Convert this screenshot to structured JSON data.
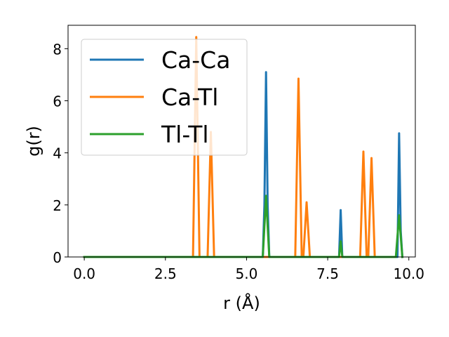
{
  "chart_data": {
    "type": "line",
    "title": "",
    "xlabel": "r (Å)",
    "ylabel": "g(r)",
    "xlim": [
      -0.5,
      10.2
    ],
    "ylim": [
      0,
      8.9
    ],
    "xticks": [
      0.0,
      2.5,
      5.0,
      7.5,
      10.0
    ],
    "xtick_labels": [
      "0.0",
      "2.5",
      "5.0",
      "7.5",
      "10.0"
    ],
    "yticks": [
      0,
      2,
      4,
      6,
      8
    ],
    "ytick_labels": [
      "0",
      "2",
      "4",
      "6",
      "8"
    ],
    "grid": false,
    "legend_position": "top-left",
    "series": [
      {
        "name": "Ca-Ca",
        "color": "#1f77b4",
        "x": [
          0.0,
          5.5,
          5.55,
          5.6,
          5.65,
          5.7,
          7.85,
          7.9,
          7.95,
          9.65,
          9.7,
          9.75,
          9.8
        ],
        "y": [
          0,
          0,
          2.0,
          7.1,
          2.0,
          0,
          0,
          1.8,
          0,
          0,
          4.75,
          1.0,
          0
        ]
      },
      {
        "name": "Ca-Tl",
        "color": "#ff7f0e",
        "x": [
          0.0,
          3.35,
          3.45,
          3.55,
          3.8,
          3.9,
          4.0,
          6.5,
          6.6,
          6.7,
          6.75,
          6.85,
          6.95,
          8.5,
          8.6,
          8.7,
          8.75,
          8.85,
          8.95
        ],
        "y": [
          0,
          0,
          8.45,
          0,
          0,
          4.8,
          0,
          0,
          6.85,
          0,
          0,
          2.1,
          0,
          0,
          4.05,
          0,
          0,
          3.8,
          0
        ]
      },
      {
        "name": "Tl-Tl",
        "color": "#2ca02c",
        "x": [
          0.0,
          5.5,
          5.6,
          5.7,
          7.85,
          7.9,
          7.95,
          9.6,
          9.7,
          9.8
        ],
        "y": [
          0,
          0,
          2.35,
          0,
          0,
          0.6,
          0,
          0,
          1.6,
          0
        ]
      }
    ]
  }
}
